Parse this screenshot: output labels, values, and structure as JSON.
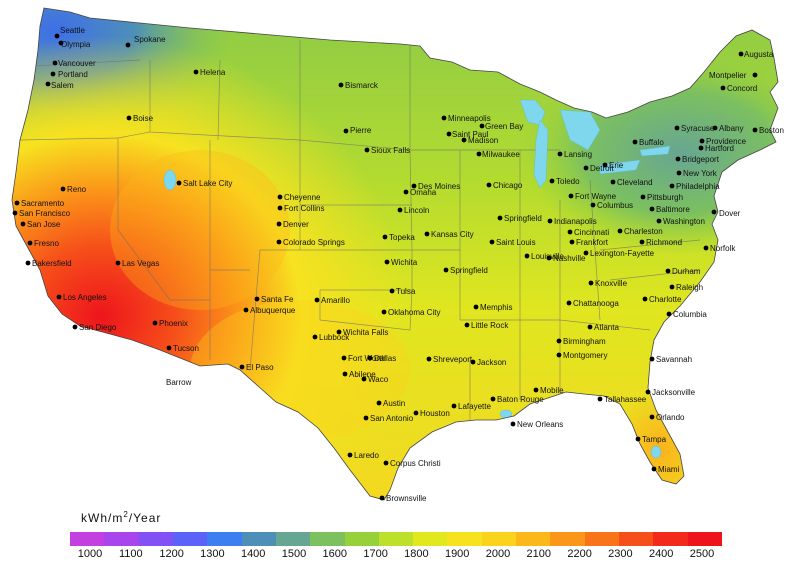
{
  "legend": {
    "title_main": "kWh/m",
    "title_sup": "2",
    "title_tail": "/Year",
    "ticks": [
      "1000",
      "1100",
      "1200",
      "1300",
      "1400",
      "1500",
      "1600",
      "1700",
      "1800",
      "1900",
      "2000",
      "2100",
      "2200",
      "2300",
      "2400",
      "2500"
    ],
    "colors": [
      "#c43fe0",
      "#a845ec",
      "#8250f4",
      "#5b62f8",
      "#3d7ff0",
      "#4e8fb8",
      "#67a692",
      "#7cc060",
      "#96d13c",
      "#bde02a",
      "#e2e81e",
      "#f7e220",
      "#fbd21c",
      "#fcb81a",
      "#fb9619",
      "#f97418",
      "#f6501a",
      "#f22a1c",
      "#ee141c"
    ]
  },
  "cities": [
    {
      "name": "Seattle",
      "lx": "60",
      "ly": "33"
    },
    {
      "name": "Olympia",
      "lx": "61",
      "ly": "47"
    },
    {
      "name": "Spokane",
      "lx": "134",
      "ly": "42"
    },
    {
      "name": "Vancouver",
      "lx": "58",
      "ly": "66"
    },
    {
      "name": "Portland",
      "lx": "58",
      "ly": "77"
    },
    {
      "name": "Salem",
      "lx": "51",
      "ly": "88"
    },
    {
      "name": "Helena",
      "lx": "200",
      "ly": "75"
    },
    {
      "name": "Boise",
      "lx": "133",
      "ly": "121"
    },
    {
      "name": "Bismarck",
      "lx": "345",
      "ly": "88"
    },
    {
      "name": "Pierre",
      "lx": "350",
      "ly": "133"
    },
    {
      "name": "Minneapolis",
      "lx": "448",
      "ly": "121"
    },
    {
      "name": "Saint Paul",
      "lx": "452",
      "ly": "137"
    },
    {
      "name": "Green Bay",
      "lx": "485",
      "ly": "129"
    },
    {
      "name": "Madison",
      "lx": "468",
      "ly": "143"
    },
    {
      "name": "Milwaukee",
      "lx": "482",
      "ly": "157"
    },
    {
      "name": "Sioux Falls",
      "lx": "371",
      "ly": "153"
    },
    {
      "name": "Lansing",
      "lx": "564",
      "ly": "157"
    },
    {
      "name": "Detroit",
      "lx": "590",
      "ly": "171"
    },
    {
      "name": "Augusta",
      "lx": "744",
      "ly": "57"
    },
    {
      "name": "Montpelier",
      "lx": "709",
      "ly": "78"
    },
    {
      "name": "Concord",
      "lx": "727",
      "ly": "91"
    },
    {
      "name": "Boston",
      "lx": "759",
      "ly": "133"
    },
    {
      "name": "Syracuse",
      "lx": "681",
      "ly": "131"
    },
    {
      "name": "Albany",
      "lx": "719",
      "ly": "131"
    },
    {
      "name": "Buffalo",
      "lx": "639",
      "ly": "145"
    },
    {
      "name": "Providence",
      "lx": "706",
      "ly": "144"
    },
    {
      "name": "Hartford",
      "lx": "705",
      "ly": "151"
    },
    {
      "name": "Bridgeport",
      "lx": "682",
      "ly": "162"
    },
    {
      "name": "New York",
      "lx": "683",
      "ly": "176"
    },
    {
      "name": "Erie",
      "lx": "609",
      "ly": "168"
    },
    {
      "name": "Toledo",
      "lx": "556",
      "ly": "184"
    },
    {
      "name": "Cleveland",
      "lx": "617",
      "ly": "185"
    },
    {
      "name": "Philadelphia",
      "lx": "676",
      "ly": "189"
    },
    {
      "name": "Chicago",
      "lx": "493",
      "ly": "188"
    },
    {
      "name": "Des Moines",
      "lx": "418",
      "ly": "189"
    },
    {
      "name": "Omaha",
      "lx": "410",
      "ly": "195"
    },
    {
      "name": "Lincoln",
      "lx": "404",
      "ly": "213"
    },
    {
      "name": "Fort Wayne",
      "lx": "575",
      "ly": "199"
    },
    {
      "name": "Pittsburgh",
      "lx": "647",
      "ly": "200"
    },
    {
      "name": "Baltimore",
      "lx": "656",
      "ly": "212"
    },
    {
      "name": "Dover",
      "lx": "719",
      "ly": "216"
    },
    {
      "name": "Washington",
      "lx": "663",
      "ly": "224"
    },
    {
      "name": "Columbus",
      "lx": "597",
      "ly": "208"
    },
    {
      "name": "Springfield",
      "lx": "504",
      "ly": "221"
    },
    {
      "name": "Indianapolis",
      "lx": "554",
      "ly": "224"
    },
    {
      "name": "Cincinnati",
      "lx": "574",
      "ly": "235"
    },
    {
      "name": "Charleston",
      "lx": "624",
      "ly": "234"
    },
    {
      "name": "Frankfort",
      "lx": "576",
      "ly": "245"
    },
    {
      "name": "Richmond",
      "lx": "646",
      "ly": "245"
    },
    {
      "name": "Norfolk",
      "lx": "710",
      "ly": "251"
    },
    {
      "name": "Lexington-Fayette",
      "lx": "590",
      "ly": "256"
    },
    {
      "name": "Saint Louis",
      "lx": "496",
      "ly": "245"
    },
    {
      "name": "Louisville",
      "lx": "531",
      "ly": "259"
    },
    {
      "name": "Kansas City",
      "lx": "431",
      "ly": "237"
    },
    {
      "name": "Topeka",
      "lx": "389",
      "ly": "240"
    },
    {
      "name": "Wichita",
      "lx": "391",
      "ly": "265"
    },
    {
      "name": "Springfield",
      "lx": "450",
      "ly": "273"
    },
    {
      "name": "Nashville",
      "lx": "553",
      "ly": "261"
    },
    {
      "name": "Knoxville",
      "lx": "595",
      "ly": "286"
    },
    {
      "name": "Durham",
      "lx": "672",
      "ly": "274"
    },
    {
      "name": "Raleigh",
      "lx": "676",
      "ly": "290"
    },
    {
      "name": "Charlotte",
      "lx": "649",
      "ly": "302"
    },
    {
      "name": "Chattanooga",
      "lx": "573",
      "ly": "306"
    },
    {
      "name": "Columbia",
      "lx": "673",
      "ly": "317"
    },
    {
      "name": "Memphis",
      "lx": "480",
      "ly": "310"
    },
    {
      "name": "Tulsa",
      "lx": "396",
      "ly": "294"
    },
    {
      "name": "Oklahoma City",
      "lx": "388",
      "ly": "315"
    },
    {
      "name": "Little Rock",
      "lx": "471",
      "ly": "328"
    },
    {
      "name": "Atlanta",
      "lx": "594",
      "ly": "330"
    },
    {
      "name": "Birmingham",
      "lx": "563",
      "ly": "344"
    },
    {
      "name": "Montgomery",
      "lx": "563",
      "ly": "358"
    },
    {
      "name": "Savannah",
      "lx": "656",
      "ly": "362"
    },
    {
      "name": "Wichita Falls",
      "lx": "343",
      "ly": "335"
    },
    {
      "name": "Lubbock",
      "lx": "319",
      "ly": "340"
    },
    {
      "name": "Amarillo",
      "lx": "321",
      "ly": "303"
    },
    {
      "name": "Fort Worth",
      "lx": "348",
      "ly": "361"
    },
    {
      "name": "Dallas",
      "lx": "374",
      "ly": "361"
    },
    {
      "name": "Abilene",
      "lx": "349",
      "ly": "377"
    },
    {
      "name": "Waco",
      "lx": "368",
      "ly": "382"
    },
    {
      "name": "Shreveport",
      "lx": "433",
      "ly": "362"
    },
    {
      "name": "Jackson",
      "lx": "477",
      "ly": "365"
    },
    {
      "name": "Mobile",
      "lx": "540",
      "ly": "393"
    },
    {
      "name": "Tallahassee",
      "lx": "604",
      "ly": "402"
    },
    {
      "name": "Jacksonville",
      "lx": "652",
      "ly": "395"
    },
    {
      "name": "Austin",
      "lx": "383",
      "ly": "406"
    },
    {
      "name": "San Antonio",
      "lx": "370",
      "ly": "421"
    },
    {
      "name": "Houston",
      "lx": "420",
      "ly": "416"
    },
    {
      "name": "Lafayette",
      "lx": "458",
      "ly": "409"
    },
    {
      "name": "Baton Rouge",
      "lx": "497",
      "ly": "402"
    },
    {
      "name": "New Orleans",
      "lx": "517",
      "ly": "427"
    },
    {
      "name": "Orlando",
      "lx": "656",
      "ly": "420"
    },
    {
      "name": "Tampa",
      "lx": "642",
      "ly": "442"
    },
    {
      "name": "Miami",
      "lx": "658",
      "ly": "472"
    },
    {
      "name": "Laredo",
      "lx": "354",
      "ly": "458"
    },
    {
      "name": "Corpus Christi",
      "lx": "390",
      "ly": "466"
    },
    {
      "name": "Brownsville",
      "lx": "386",
      "ly": "501"
    },
    {
      "name": "Reno",
      "lx": "67",
      "ly": "192"
    },
    {
      "name": "Sacramento",
      "lx": "21",
      "ly": "206"
    },
    {
      "name": "San Francisco",
      "lx": "19",
      "ly": "216"
    },
    {
      "name": "San Jose",
      "lx": "27",
      "ly": "227"
    },
    {
      "name": "Fresno",
      "lx": "34",
      "ly": "246"
    },
    {
      "name": "Bakersfield",
      "lx": "32",
      "ly": "266"
    },
    {
      "name": "Las Vegas",
      "lx": "122",
      "ly": "266"
    },
    {
      "name": "Los Angeles",
      "lx": "63",
      "ly": "300"
    },
    {
      "name": "San Diego",
      "lx": "79",
      "ly": "330"
    },
    {
      "name": "Phoenix",
      "lx": "159",
      "ly": "326"
    },
    {
      "name": "Tucson",
      "lx": "173",
      "ly": "351"
    },
    {
      "name": "Barrow",
      "lx": "166",
      "ly": "385"
    },
    {
      "name": "El Paso",
      "lx": "246",
      "ly": "370"
    },
    {
      "name": "Santa Fe",
      "lx": "261",
      "ly": "302"
    },
    {
      "name": "Albuquerque",
      "lx": "250",
      "ly": "313"
    },
    {
      "name": "Salt Lake City",
      "lx": "183",
      "ly": "186"
    },
    {
      "name": "Cheyenne",
      "lx": "284",
      "ly": "200"
    },
    {
      "name": "Fort Collins",
      "lx": "284",
      "ly": "211"
    },
    {
      "name": "Denver",
      "lx": "283",
      "ly": "227"
    },
    {
      "name": "Colorado Springs",
      "lx": "283",
      "ly": "245"
    }
  ],
  "dots": [
    [
      57,
      36
    ],
    [
      61,
      43
    ],
    [
      128,
      45
    ],
    [
      55,
      63
    ],
    [
      53,
      74
    ],
    [
      48,
      84
    ],
    [
      196,
      72
    ],
    [
      129,
      118
    ],
    [
      341,
      85
    ],
    [
      346,
      131
    ],
    [
      444,
      118
    ],
    [
      449,
      134
    ],
    [
      482,
      126
    ],
    [
      464,
      140
    ],
    [
      479,
      154
    ],
    [
      367,
      150
    ],
    [
      560,
      154
    ],
    [
      586,
      168
    ],
    [
      741,
      54
    ],
    [
      755,
      75
    ],
    [
      723,
      88
    ],
    [
      755,
      130
    ],
    [
      677,
      128
    ],
    [
      715,
      128
    ],
    [
      635,
      142
    ],
    [
      702,
      141
    ],
    [
      701,
      148
    ],
    [
      678,
      159
    ],
    [
      679,
      173
    ],
    [
      605,
      165
    ],
    [
      552,
      181
    ],
    [
      613,
      182
    ],
    [
      672,
      186
    ],
    [
      489,
      185
    ],
    [
      414,
      186
    ],
    [
      406,
      192
    ],
    [
      400,
      210
    ],
    [
      571,
      196
    ],
    [
      643,
      197
    ],
    [
      652,
      209
    ],
    [
      714,
      212
    ],
    [
      659,
      221
    ],
    [
      593,
      205
    ],
    [
      500,
      218
    ],
    [
      550,
      221
    ],
    [
      570,
      232
    ],
    [
      620,
      231
    ],
    [
      572,
      242
    ],
    [
      642,
      242
    ],
    [
      706,
      248
    ],
    [
      586,
      253
    ],
    [
      492,
      242
    ],
    [
      527,
      256
    ],
    [
      427,
      234
    ],
    [
      385,
      237
    ],
    [
      387,
      262
    ],
    [
      446,
      270
    ],
    [
      549,
      258
    ],
    [
      591,
      283
    ],
    [
      668,
      271
    ],
    [
      672,
      287
    ],
    [
      645,
      299
    ],
    [
      569,
      303
    ],
    [
      669,
      314
    ],
    [
      476,
      307
    ],
    [
      392,
      291
    ],
    [
      384,
      312
    ],
    [
      467,
      325
    ],
    [
      590,
      327
    ],
    [
      559,
      341
    ],
    [
      559,
      355
    ],
    [
      652,
      359
    ],
    [
      339,
      332
    ],
    [
      315,
      337
    ],
    [
      317,
      300
    ],
    [
      344,
      358
    ],
    [
      370,
      358
    ],
    [
      345,
      374
    ],
    [
      364,
      379
    ],
    [
      429,
      359
    ],
    [
      473,
      362
    ],
    [
      536,
      390
    ],
    [
      600,
      399
    ],
    [
      648,
      392
    ],
    [
      379,
      403
    ],
    [
      366,
      418
    ],
    [
      416,
      413
    ],
    [
      454,
      406
    ],
    [
      493,
      399
    ],
    [
      513,
      424
    ],
    [
      652,
      417
    ],
    [
      638,
      439
    ],
    [
      654,
      469
    ],
    [
      350,
      455
    ],
    [
      386,
      463
    ],
    [
      382,
      498
    ],
    [
      63,
      189
    ],
    [
      17,
      203
    ],
    [
      15,
      213
    ],
    [
      23,
      224
    ],
    [
      30,
      243
    ],
    [
      28,
      263
    ],
    [
      118,
      263
    ],
    [
      59,
      297
    ],
    [
      75,
      327
    ],
    [
      155,
      323
    ],
    [
      169,
      348
    ],
    [
      242,
      367
    ],
    [
      257,
      299
    ],
    [
      246,
      310
    ],
    [
      179,
      183
    ],
    [
      280,
      197
    ],
    [
      280,
      208
    ],
    [
      279,
      224
    ],
    [
      279,
      242
    ]
  ]
}
